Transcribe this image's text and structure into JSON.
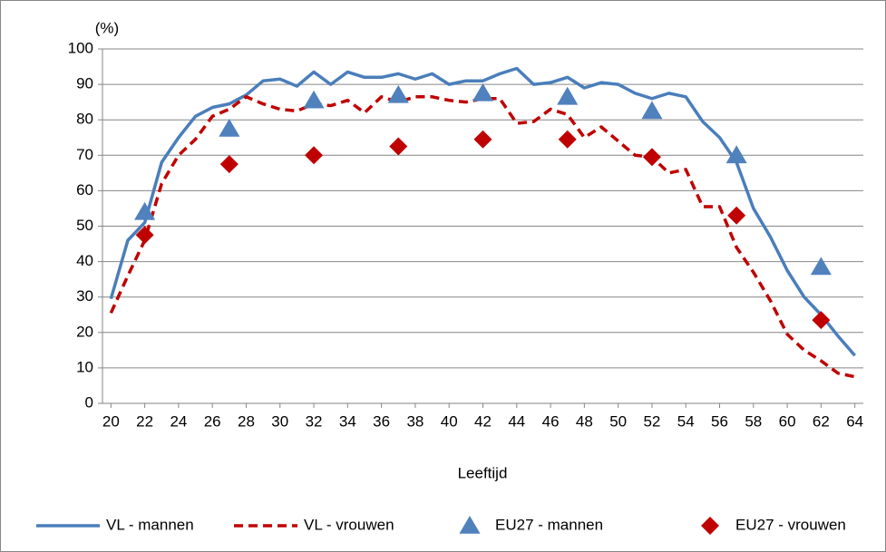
{
  "chart_data": {
    "type": "line",
    "y_unit_label": "(%)",
    "x_label": "Leeftijd",
    "xlim": [
      19.5,
      64.5
    ],
    "xticks": [
      20,
      22,
      24,
      26,
      28,
      30,
      32,
      34,
      36,
      38,
      40,
      42,
      44,
      46,
      48,
      50,
      52,
      54,
      56,
      58,
      60,
      62,
      64
    ],
    "ylim": [
      0,
      100
    ],
    "yticks": [
      0,
      10,
      20,
      30,
      40,
      50,
      60,
      70,
      80,
      90,
      100
    ],
    "grid": true,
    "legend": "bottom",
    "series": [
      {
        "name": "VL - mannen",
        "color": "#4a7ebb",
        "style": "solid",
        "x": [
          20,
          21,
          22,
          23,
          24,
          25,
          26,
          27,
          28,
          29,
          30,
          31,
          32,
          33,
          34,
          35,
          36,
          37,
          38,
          39,
          40,
          41,
          42,
          43,
          44,
          45,
          46,
          47,
          48,
          49,
          50,
          51,
          52,
          53,
          54,
          55,
          56,
          57,
          58,
          59,
          60,
          61,
          62,
          63,
          64
        ],
        "values": [
          29.5,
          46,
          51,
          68,
          75,
          81,
          83.5,
          84.5,
          87,
          91,
          91.5,
          89.5,
          93.5,
          90,
          93.5,
          92,
          92,
          93,
          91.5,
          93,
          90,
          91,
          91,
          93,
          94.5,
          90,
          90.5,
          92,
          89,
          90.5,
          90,
          87.5,
          86,
          87.5,
          86.5,
          79.5,
          75,
          68,
          55,
          47,
          37.5,
          30,
          25,
          19,
          13.5
        ]
      },
      {
        "name": "VL - vrouwen",
        "color": "#c00000",
        "style": "dashed",
        "x": [
          20,
          21,
          22,
          23,
          24,
          25,
          26,
          27,
          28,
          29,
          30,
          31,
          32,
          33,
          34,
          35,
          36,
          37,
          38,
          39,
          40,
          41,
          42,
          43,
          44,
          45,
          46,
          47,
          48,
          49,
          50,
          51,
          52,
          53,
          54,
          55,
          56,
          57,
          58,
          59,
          60,
          61,
          62,
          63,
          64
        ],
        "values": [
          25.5,
          36,
          46,
          62,
          70,
          74.5,
          81,
          83,
          86.5,
          84.5,
          83,
          82.5,
          84.5,
          84,
          85.5,
          82,
          86.5,
          85,
          86.5,
          86.5,
          85.5,
          85,
          86,
          86,
          79,
          79.5,
          83,
          81.5,
          75,
          78,
          74,
          70,
          69.5,
          65,
          66,
          55.5,
          55.5,
          44,
          37,
          29,
          19.5,
          15,
          12,
          8.5,
          7.5
        ]
      },
      {
        "name": "EU27 - mannen",
        "color": "#4f81bd",
        "style": "triangle",
        "x": [
          22,
          27,
          32,
          37,
          42,
          47,
          52,
          57,
          62
        ],
        "values": [
          54,
          77.5,
          85.5,
          87,
          87.5,
          86.5,
          82.5,
          70,
          38.5
        ]
      },
      {
        "name": "EU27 - vrouwen",
        "color": "#c00000",
        "style": "diamond",
        "x": [
          22,
          27,
          32,
          37,
          42,
          47,
          52,
          57,
          62
        ],
        "values": [
          47.5,
          67.5,
          70,
          72.5,
          74.5,
          74.5,
          69.5,
          53,
          23.5
        ]
      }
    ]
  }
}
